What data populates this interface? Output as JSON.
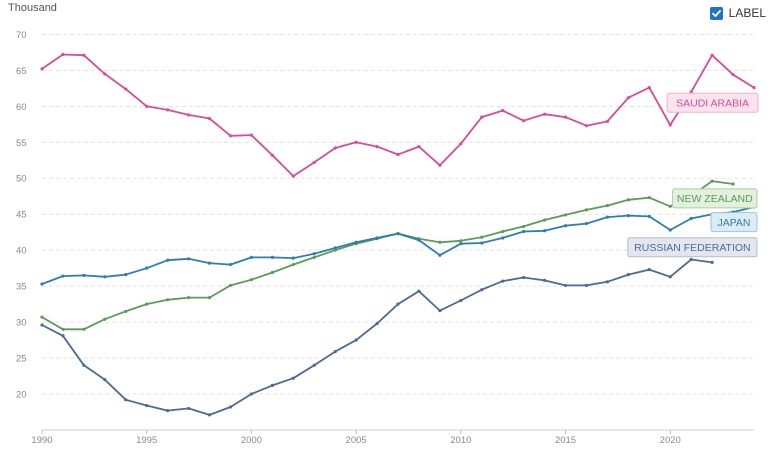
{
  "chart_data": {
    "type": "line",
    "unit_label": "Thousand",
    "toggle_label": "LABEL",
    "x": [
      1990,
      1991,
      1992,
      1993,
      1994,
      1995,
      1996,
      1997,
      1998,
      1999,
      2000,
      2001,
      2002,
      2003,
      2004,
      2005,
      2006,
      2007,
      2008,
      2009,
      2010,
      2011,
      2012,
      2013,
      2014,
      2015,
      2016,
      2017,
      2018,
      2019,
      2020,
      2021,
      2022,
      2023,
      2024
    ],
    "xticks": [
      1990,
      1995,
      2000,
      2005,
      2010,
      2015,
      2020
    ],
    "ylim": [
      15,
      72
    ],
    "yticks": [
      20,
      25,
      30,
      35,
      40,
      45,
      50,
      55,
      60,
      65,
      70
    ],
    "grid": true,
    "series": [
      {
        "name": "SAUDI ARABIA",
        "color": "#d64d96",
        "fill": "#fbe3ef",
        "border": "#efb0cf",
        "values": [
          65.2,
          67.2,
          67.1,
          64.5,
          62.4,
          60.0,
          59.5,
          58.8,
          58.3,
          55.9,
          56.0,
          53.2,
          50.3,
          52.2,
          54.2,
          55.0,
          54.4,
          53.3,
          54.4,
          51.8,
          54.8,
          58.5,
          59.4,
          58.0,
          58.9,
          58.5,
          57.3,
          57.9,
          61.2,
          62.6,
          57.4,
          62.0,
          67.1,
          64.4,
          62.6
        ]
      },
      {
        "name": "NEW ZEALAND",
        "color": "#5d9c58",
        "fill": "#e2f0dd",
        "border": "#a9cfa3",
        "values": [
          30.7,
          29.0,
          29.0,
          30.4,
          31.5,
          32.5,
          33.1,
          33.4,
          33.4,
          35.1,
          35.9,
          36.9,
          38.0,
          39.0,
          40.0,
          40.9,
          41.6,
          42.3,
          41.6,
          41.1,
          41.3,
          41.8,
          42.6,
          43.3,
          44.2,
          44.9,
          45.6,
          46.2,
          47.0,
          47.3,
          46.1,
          47.5,
          49.6,
          49.2,
          null
        ]
      },
      {
        "name": "JAPAN",
        "color": "#2e7eb0",
        "fill": "#dcecf6",
        "border": "#9cc6e0",
        "values": [
          35.3,
          36.4,
          36.5,
          36.3,
          36.6,
          37.5,
          38.6,
          38.8,
          38.2,
          38.0,
          39.0,
          39.0,
          38.9,
          39.5,
          40.3,
          41.1,
          41.7,
          42.3,
          41.4,
          39.3,
          40.9,
          41.0,
          41.7,
          42.6,
          42.7,
          43.4,
          43.7,
          44.6,
          44.8,
          44.7,
          42.8,
          44.4,
          45.0,
          45.3,
          46.0
        ]
      },
      {
        "name": "RUSSIAN FEDERATION",
        "color": "#4e6a92",
        "fill": "#e3e6ef",
        "border": "#b3bccf",
        "values": [
          29.6,
          28.1,
          24.0,
          22.0,
          19.2,
          18.4,
          17.7,
          18.0,
          17.1,
          18.2,
          20.0,
          21.2,
          22.2,
          24.0,
          25.9,
          27.5,
          29.8,
          32.5,
          34.3,
          31.6,
          33.0,
          34.5,
          35.7,
          36.2,
          35.8,
          35.1,
          35.1,
          35.6,
          36.6,
          37.3,
          36.3,
          38.7,
          38.3,
          null,
          null
        ]
      }
    ]
  }
}
